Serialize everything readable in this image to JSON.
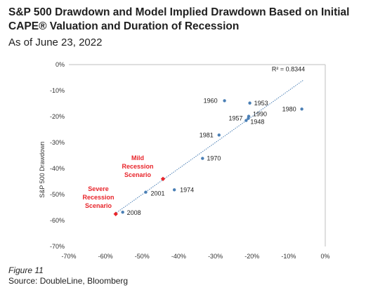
{
  "title": "S&P 500 Drawdown and Model Implied Drawdown Based on Initial CAPE® Valuation and Duration of Recession",
  "subtitle": "As of June 23, 2022",
  "figure_label": "Figure 11",
  "source": "Source: DoubleLine, Bloomberg",
  "colors": {
    "points": "#4a7fb5",
    "scenario": "#e8242a",
    "trend": "#4a7fb5",
    "axis": "#bfbfbf"
  },
  "chart_data": {
    "type": "scatter",
    "title": "S&P 500 Drawdown and Model Implied Drawdown Based on Initial CAPE® Valuation and Duration of Recession",
    "xlabel": "",
    "ylabel": "S&P 500 Drawdown",
    "xlim": [
      -70,
      0
    ],
    "ylim": [
      -70,
      0
    ],
    "x_ticks": [
      "-70%",
      "-60%",
      "-50%",
      "-40%",
      "-30%",
      "-20%",
      "-10%",
      "0%"
    ],
    "y_ticks": [
      "0%",
      "-10%",
      "-20%",
      "-30%",
      "-40%",
      "-50%",
      "-60%",
      "-70%"
    ],
    "grid": false,
    "r_squared_label": "R² = 0.8344",
    "trendline": {
      "x": [
        -57,
        -6
      ],
      "y": [
        -57,
        -6
      ]
    },
    "points": [
      {
        "label": "1960",
        "x": -27.5,
        "y": -13.9
      },
      {
        "label": "1953",
        "x": -20.6,
        "y": -14.8
      },
      {
        "label": "1980",
        "x": -6.4,
        "y": -17.1
      },
      {
        "label": "1990",
        "x": -20.9,
        "y": -19.9
      },
      {
        "label": "1957",
        "x": -21.0,
        "y": -20.7
      },
      {
        "label": "1948",
        "x": -21.6,
        "y": -21.5
      },
      {
        "label": "1981",
        "x": -29.0,
        "y": -27.1
      },
      {
        "label": "1970",
        "x": -33.5,
        "y": -36.1
      },
      {
        "label": "1974",
        "x": -41.2,
        "y": -48.2
      },
      {
        "label": "2001",
        "x": -49.0,
        "y": -49.1
      },
      {
        "label": "2008",
        "x": -55.3,
        "y": -56.8
      }
    ],
    "scenarios": [
      {
        "label": "Mild Recession Scenario",
        "lines": [
          "Mild",
          "Recession",
          "Scenario"
        ],
        "x": -44.3,
        "y": -44.0
      },
      {
        "label": "Severe Recession Scenario",
        "lines": [
          "Severe",
          "Recession",
          "Scenario"
        ],
        "x": -57.2,
        "y": -57.5
      }
    ]
  }
}
